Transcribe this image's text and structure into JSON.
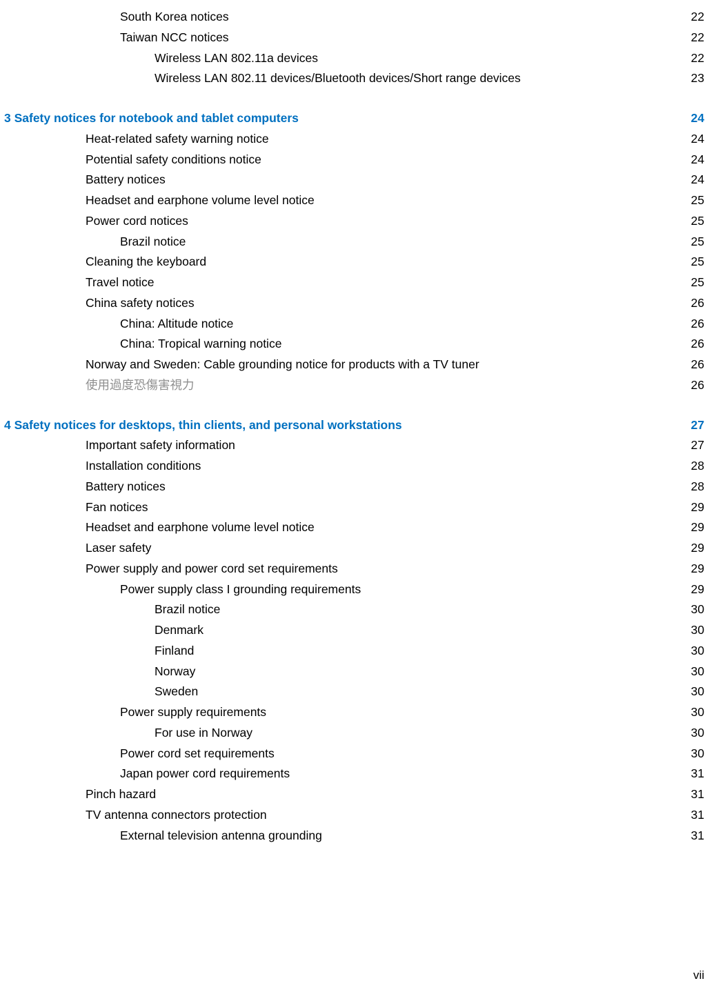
{
  "colors": {
    "accent": "#0070c0",
    "text": "#000000",
    "dim": "#8f8f8f",
    "background": "#ffffff"
  },
  "page_number": "vii",
  "toc": [
    {
      "level": 2,
      "label": "South Korea notices",
      "page": "22"
    },
    {
      "level": 2,
      "label": "Taiwan NCC notices",
      "page": "22"
    },
    {
      "level": 3,
      "label": "Wireless LAN 802.11a devices",
      "page": "22"
    },
    {
      "level": 3,
      "label": "Wireless LAN 802.11 devices/Bluetooth devices/Short range devices",
      "page": "23"
    },
    {
      "level": 0,
      "label": "3   Safety notices for notebook and tablet computers",
      "page": "24",
      "chapter": true
    },
    {
      "level": 1,
      "label": "Heat-related safety warning notice",
      "page": "24"
    },
    {
      "level": 1,
      "label": "Potential safety conditions notice",
      "page": "24"
    },
    {
      "level": 1,
      "label": "Battery notices",
      "page": "24"
    },
    {
      "level": 1,
      "label": "Headset and earphone volume level notice",
      "page": "25"
    },
    {
      "level": 1,
      "label": "Power cord notices",
      "page": "25"
    },
    {
      "level": 2,
      "label": "Brazil notice",
      "page": "25"
    },
    {
      "level": 1,
      "label": "Cleaning the keyboard",
      "page": "25"
    },
    {
      "level": 1,
      "label": "Travel notice",
      "page": "25"
    },
    {
      "level": 1,
      "label": "China safety notices",
      "page": "26"
    },
    {
      "level": 2,
      "label": "China: Altitude notice",
      "page": "26"
    },
    {
      "level": 2,
      "label": "China: Tropical warning notice",
      "page": "26"
    },
    {
      "level": 1,
      "label": "Norway and Sweden: Cable grounding notice for products with a TV tuner",
      "page": "26"
    },
    {
      "level": 1,
      "label": "使用過度恐傷害視力",
      "page": "26",
      "dim": true
    },
    {
      "level": 0,
      "label": "4   Safety notices for desktops, thin clients, and personal workstations",
      "page": "27",
      "chapter": true
    },
    {
      "level": 1,
      "label": "Important safety information",
      "page": "27"
    },
    {
      "level": 1,
      "label": "Installation conditions",
      "page": "28"
    },
    {
      "level": 1,
      "label": "Battery notices",
      "page": "28"
    },
    {
      "level": 1,
      "label": "Fan notices",
      "page": "29"
    },
    {
      "level": 1,
      "label": "Headset and earphone volume level notice",
      "page": "29"
    },
    {
      "level": 1,
      "label": "Laser safety",
      "page": "29"
    },
    {
      "level": 1,
      "label": "Power supply and power cord set requirements",
      "page": "29"
    },
    {
      "level": 2,
      "label": "Power supply class I grounding requirements",
      "page": "29"
    },
    {
      "level": 3,
      "label": "Brazil notice",
      "page": "30"
    },
    {
      "level": 3,
      "label": "Denmark",
      "page": "30"
    },
    {
      "level": 3,
      "label": "Finland",
      "page": "30"
    },
    {
      "level": 3,
      "label": "Norway",
      "page": "30"
    },
    {
      "level": 3,
      "label": "Sweden",
      "page": "30"
    },
    {
      "level": 2,
      "label": "Power supply requirements",
      "page": "30"
    },
    {
      "level": 3,
      "label": "For use in Norway",
      "page": "30"
    },
    {
      "level": 2,
      "label": "Power cord set requirements",
      "page": "30"
    },
    {
      "level": 2,
      "label": "Japan power cord requirements",
      "page": "31"
    },
    {
      "level": 1,
      "label": "Pinch hazard",
      "page": "31"
    },
    {
      "level": 1,
      "label": "TV antenna connectors protection",
      "page": "31"
    },
    {
      "level": 2,
      "label": "External television antenna grounding",
      "page": "31"
    }
  ]
}
